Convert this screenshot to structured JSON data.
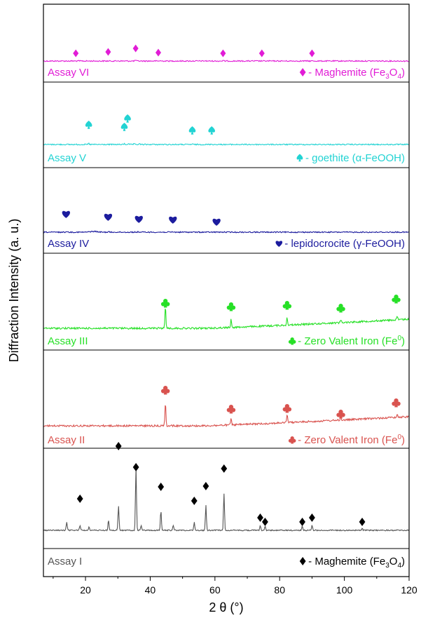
{
  "chart_data": {
    "type": "line",
    "title": "",
    "xlabel": "2 θ (°)",
    "ylabel": "Diffraction Intensity (a. u.)",
    "xlim": [
      7,
      120
    ],
    "xticks": [
      20,
      40,
      60,
      80,
      100,
      120
    ],
    "grid": false,
    "series": [
      {
        "name": "Assay VI",
        "color": "#e11cd6",
        "marker": "diamond",
        "markers": [
          17,
          27,
          35.5,
          42.5,
          62.5,
          74.5,
          90
        ],
        "peaks": [
          [
            18,
            2
          ],
          [
            30,
            4
          ],
          [
            35.5,
            10
          ],
          [
            43,
            4
          ],
          [
            57,
            3
          ],
          [
            62.5,
            5
          ],
          [
            74.5,
            2
          ],
          [
            90,
            2
          ]
        ],
        "curve": "flat",
        "phase": {
          "label": "- Maghemite (Fe",
          "sub": "3",
          "label2": "O",
          "sub2": "4",
          "end": ")"
        }
      },
      {
        "name": "Assay V",
        "color": "#22d3d3",
        "marker": "spade",
        "markers": [
          21,
          32,
          33,
          53,
          59
        ],
        "peaks": [
          [
            21,
            10
          ],
          [
            32,
            8
          ],
          [
            33.2,
            10
          ],
          [
            35,
            6
          ],
          [
            36.6,
            8
          ],
          [
            41,
            3
          ],
          [
            53,
            4
          ],
          [
            59,
            5
          ]
        ],
        "curve": "flat",
        "phase": {
          "label": "- goethite (α-FeOOH)"
        }
      },
      {
        "name": "Assay IV",
        "color": "#1c1c9e",
        "marker": "heart",
        "markers": [
          14,
          27,
          36.5,
          47,
          60.5
        ],
        "peaks": [
          [
            14.1,
            10
          ],
          [
            22.5,
            8,
            1.5
          ],
          [
            27.1,
            6
          ],
          [
            36.3,
            4
          ],
          [
            46.9,
            3
          ],
          [
            60.5,
            2
          ]
        ],
        "curve": "flat",
        "phase": {
          "label": "- lepidocrocite (γ-FeOOH)"
        }
      },
      {
        "name": "Assay III",
        "color": "#27e027",
        "marker": "club",
        "markers": [
          44.7,
          65,
          82.3,
          98.9,
          116
        ],
        "peaks": [
          [
            44.7,
            46
          ],
          [
            65,
            16
          ],
          [
            82.3,
            16
          ],
          [
            98.9,
            6
          ],
          [
            116.3,
            6
          ]
        ],
        "curve": "rising",
        "phase": {
          "label": "- Zero Valent Iron (Fe",
          "sup": "0",
          "end": ")"
        }
      },
      {
        "name": "Assay II",
        "color": "#d9534f",
        "marker": "club",
        "markers": [
          44.7,
          65,
          82.3,
          98.9,
          116
        ],
        "peaks": [
          [
            44.7,
            46
          ],
          [
            65,
            12
          ],
          [
            82.3,
            16
          ],
          [
            98.9,
            6
          ],
          [
            116.3,
            6
          ]
        ],
        "curve": "rising",
        "phase": {
          "label": "- Zero Valent Iron (Fe",
          "sup": "0",
          "end": ")"
        }
      },
      {
        "name": "Assay I",
        "color": "#555555",
        "marker": "diamond",
        "marker_color": "#000000",
        "markers": [
          18.3,
          30.2,
          35.6,
          43.3,
          53.6,
          57.2,
          62.8,
          74,
          75.5,
          87,
          90,
          105.5
        ],
        "peaks": [
          [
            14.2,
            12
          ],
          [
            18.3,
            8
          ],
          [
            21.1,
            6
          ],
          [
            27.1,
            15
          ],
          [
            30.2,
            38
          ],
          [
            35.6,
            98
          ],
          [
            37.2,
            8
          ],
          [
            43.3,
            30
          ],
          [
            47.1,
            8
          ],
          [
            53.6,
            12
          ],
          [
            57.2,
            38
          ],
          [
            62.8,
            57
          ],
          [
            74,
            8
          ],
          [
            75.5,
            6
          ],
          [
            87,
            6
          ],
          [
            90,
            8
          ],
          [
            105.5,
            3
          ]
        ],
        "curve": "flat",
        "phase": {
          "label": "- Maghemite (Fe",
          "sub": "3",
          "label2": "O",
          "sub2": "4",
          "end": ")"
        }
      }
    ]
  }
}
